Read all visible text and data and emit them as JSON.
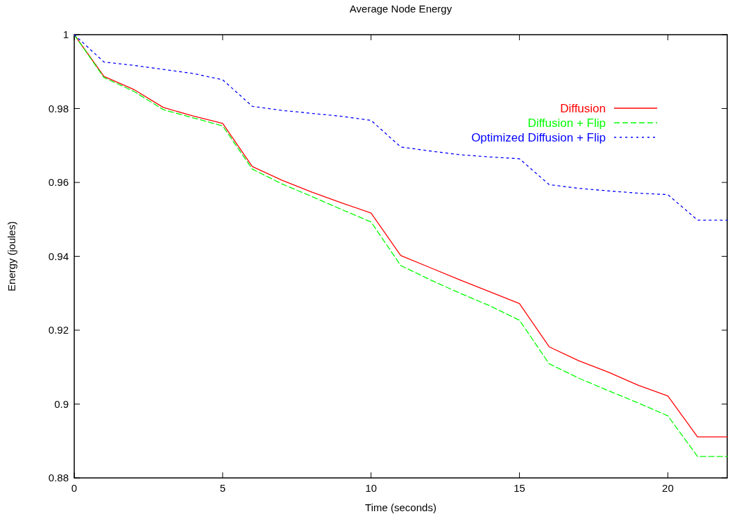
{
  "chart_data": {
    "type": "line",
    "title": "Average Node Energy",
    "xlabel": "Time (seconds)",
    "ylabel": "Energy (joules)",
    "x": [
      0,
      1,
      2,
      3,
      4,
      5,
      6,
      7,
      8,
      9,
      10,
      11,
      12,
      13,
      14,
      15,
      16,
      17,
      18,
      19,
      20,
      21,
      22
    ],
    "xlim": [
      0,
      22
    ],
    "xticks": [
      0,
      5,
      10,
      15,
      20
    ],
    "ylim": [
      0.88,
      1
    ],
    "yticks": [
      0.88,
      0.9,
      0.92,
      0.94,
      0.96,
      0.98,
      1
    ],
    "grid": false,
    "legend": "top right",
    "marker": "none",
    "series": [
      {
        "name": "Diffusion",
        "color": "#ff0000",
        "line_style": "solid",
        "values": [
          1,
          0.9887,
          0.9852,
          0.9803,
          0.978,
          0.976,
          0.9643,
          0.9606,
          0.9574,
          0.9545,
          0.9517,
          0.9402,
          0.9369,
          0.9336,
          0.9304,
          0.9272,
          0.9155,
          0.9117,
          0.9086,
          0.9051,
          0.9022,
          0.8911,
          0.8911
        ]
      },
      {
        "name": "Diffusion + Flip",
        "color": "#00ff00",
        "line_style": "dashed",
        "values": [
          1,
          0.9884,
          0.9847,
          0.9797,
          0.9775,
          0.9753,
          0.9636,
          0.9596,
          0.9562,
          0.9527,
          0.9493,
          0.9375,
          0.9336,
          0.93,
          0.9266,
          0.9227,
          0.9109,
          0.907,
          0.9036,
          0.9003,
          0.8968,
          0.8858,
          0.8858
        ]
      },
      {
        "name": "Optimized Diffusion + Flip",
        "color": "#0000ff",
        "line_style": "dotted",
        "values": [
          1,
          0.9926,
          0.9917,
          0.9906,
          0.9895,
          0.9878,
          0.9806,
          0.9795,
          0.9787,
          0.9779,
          0.9768,
          0.9696,
          0.9685,
          0.9675,
          0.9669,
          0.9664,
          0.9594,
          0.9584,
          0.9577,
          0.9571,
          0.9567,
          0.9498,
          0.9498
        ]
      }
    ]
  }
}
